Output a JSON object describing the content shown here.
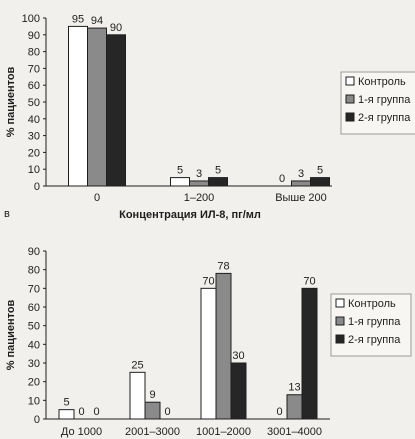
{
  "panel_marks": {
    "second": "в"
  },
  "colors": {
    "Контроль": "#ffffff",
    "1-я группа": "#8a8a8a",
    "2-я группа": "#262626",
    "background": "#f2f0ec",
    "ink": "#1e1e1e"
  },
  "chart_data": [
    {
      "type": "bar",
      "categories": [
        "0",
        "1–200",
        "Выше 200"
      ],
      "series": [
        {
          "name": "Контроль",
          "values": [
            95,
            5,
            0
          ]
        },
        {
          "name": "1-я группа",
          "values": [
            94,
            3,
            3
          ]
        },
        {
          "name": "2-я группа",
          "values": [
            90,
            5,
            5
          ]
        }
      ],
      "xlabel": "Концентрация ИЛ-8, пг/мл",
      "ylabel": "% пациентов",
      "ylim": [
        0,
        100
      ],
      "yticks": [
        0,
        10,
        20,
        30,
        40,
        50,
        60,
        70,
        80,
        90,
        100
      ],
      "legend_position": "right",
      "grid": false
    },
    {
      "type": "bar",
      "categories": [
        "До 1000",
        "2001–3000",
        "1001–2000",
        "3001–4000"
      ],
      "series": [
        {
          "name": "Контроль",
          "values": [
            5,
            25,
            70,
            0
          ]
        },
        {
          "name": "1-я группа",
          "values": [
            0,
            9,
            78,
            13
          ]
        },
        {
          "name": "2-я группа",
          "values": [
            0,
            0,
            30,
            70
          ]
        }
      ],
      "xlabel": "",
      "ylabel": "% пациентов",
      "ylim": [
        0,
        90
      ],
      "yticks": [
        0,
        10,
        20,
        30,
        40,
        50,
        60,
        70,
        80,
        90
      ],
      "legend_position": "right",
      "grid": false
    }
  ]
}
